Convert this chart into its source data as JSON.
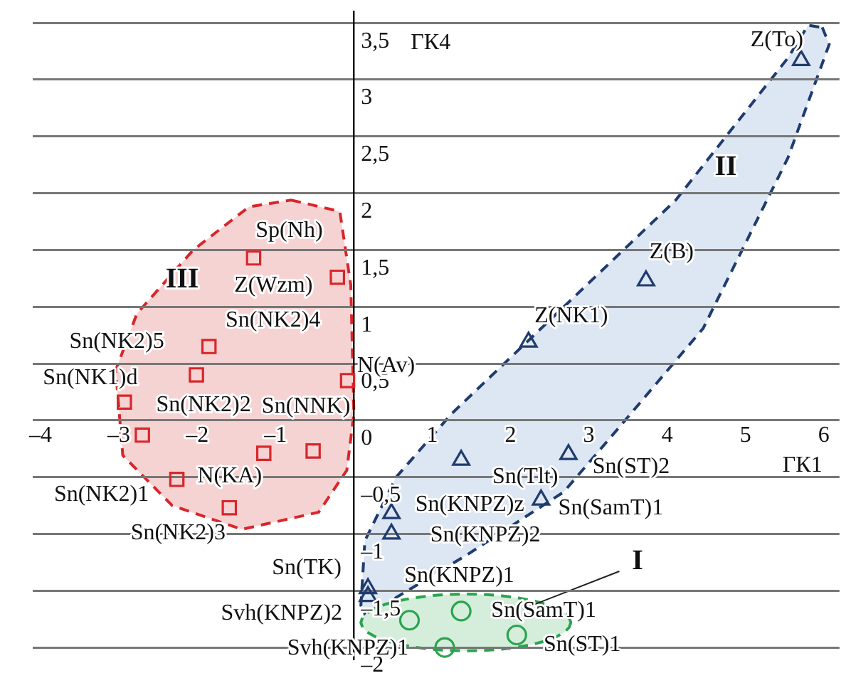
{
  "chart_data": {
    "type": "scatter",
    "xlabel": "ГК1",
    "ylabel": "ГК4",
    "xlim": [
      -4.1,
      6.2
    ],
    "ylim": [
      -2.1,
      3.6
    ],
    "xticks": [
      {
        "value": -4,
        "label": "–4"
      },
      {
        "value": -3,
        "label": "–3"
      },
      {
        "value": -2,
        "label": "–2"
      },
      {
        "value": -1,
        "label": "–1"
      },
      {
        "value": 0,
        "label": null
      },
      1,
      2,
      3,
      4,
      5,
      6
    ],
    "yticks": [
      {
        "value": -2,
        "label": "–2"
      },
      {
        "value": -1.5,
        "label": "–1,5"
      },
      {
        "value": -1,
        "label": "–1"
      },
      {
        "value": -0.5,
        "label": "–0,5"
      },
      0,
      {
        "value": 0.5,
        "label": "0,5"
      },
      1,
      {
        "value": 1.5,
        "label": "1,5"
      },
      2,
      {
        "value": 2.5,
        "label": "2,5"
      },
      3,
      {
        "value": 3.5,
        "label": "3,5"
      }
    ],
    "grid": "y",
    "legend": false,
    "series": [
      {
        "color": "#d9262a",
        "marker": "square",
        "x": [
          -1.28,
          -0.21,
          -1.85,
          -2.01,
          -2.93,
          -2.7,
          -0.52,
          -1.15,
          -2.26,
          -1.59,
          -0.08
        ],
        "values": [
          1.43,
          1.26,
          0.65,
          0.4,
          0.16,
          -0.13,
          -0.27,
          -0.29,
          -0.52,
          -0.77,
          0.35
        ]
      },
      {
        "color": "#1f3c6e",
        "marker": "triangle",
        "x": [
          5.71,
          3.73,
          2.23,
          1.37,
          2.74,
          2.39,
          0.48,
          0.48,
          0.18,
          0.18
        ],
        "values": [
          3.17,
          1.23,
          0.69,
          -0.35,
          -0.3,
          -0.7,
          -0.82,
          -1.0,
          -1.48,
          -1.55
        ]
      },
      {
        "color": "#2aa44f",
        "marker": "circle",
        "x": [
          1.37,
          2.08,
          1.16,
          0.71
        ],
        "values": [
          -1.68,
          -1.89,
          -2.0,
          -1.76
        ]
      }
    ],
    "annotations": [
      {
        "text": "Sp(Nh)",
        "x": -1.28,
        "y": 1.43
      },
      {
        "text": "Z(Wzm)",
        "x": -0.21,
        "y": 1.26
      },
      {
        "text": "Sn(NK2)4",
        "x": -1.85,
        "y": 0.65
      },
      {
        "text": "Sn(NK2)5",
        "x": -2.01,
        "y": 0.4
      },
      {
        "text": "Sn(NK1)d",
        "x": -2.93,
        "y": 0.16
      },
      {
        "text": "Sn(NK2)2",
        "x": -2.7,
        "y": -0.13
      },
      {
        "text": "Sn(NNK)",
        "x": -0.52,
        "y": -0.27
      },
      {
        "text": "N(KA)",
        "x": -1.15,
        "y": -0.29
      },
      {
        "text": "Sn(NK2)1",
        "x": -2.26,
        "y": -0.52
      },
      {
        "text": "Sn(NK2)3",
        "x": -1.59,
        "y": -0.77
      },
      {
        "text": "N(Av)",
        "x": -0.08,
        "y": 0.35
      },
      {
        "text": "Z(To)",
        "x": 5.71,
        "y": 3.17
      },
      {
        "text": "Z(B)",
        "x": 3.73,
        "y": 1.23
      },
      {
        "text": "Z(NK1)",
        "x": 2.23,
        "y": 0.69
      },
      {
        "text": "Sn(Tlt)",
        "x": 1.37,
        "y": -0.35
      },
      {
        "text": "Sn(ST)2",
        "x": 2.74,
        "y": -0.3
      },
      {
        "text": "Sn(SamT)1",
        "x": 2.39,
        "y": -0.7
      },
      {
        "text": "Sn(KNPZ)z",
        "x": 0.48,
        "y": -0.82
      },
      {
        "text": "Sn(KNPZ)2",
        "x": 0.48,
        "y": -1.0
      },
      {
        "text": "Sn(TK)",
        "x": 0.18,
        "y": -1.48
      },
      {
        "text": "Svh(KNPZ)2",
        "x": 0.18,
        "y": -1.55
      },
      {
        "text": "Sn(SamT)1",
        "x": 1.37,
        "y": -1.68
      },
      {
        "text": "Sn(ST)1",
        "x": 2.08,
        "y": -1.89
      },
      {
        "text": "Svh(KNPZ)1",
        "x": 1.16,
        "y": -2.0
      },
      {
        "text": "Sn(KNPZ)1",
        "x": 0.71,
        "y": -1.76
      },
      "I",
      "II",
      "III"
    ]
  }
}
